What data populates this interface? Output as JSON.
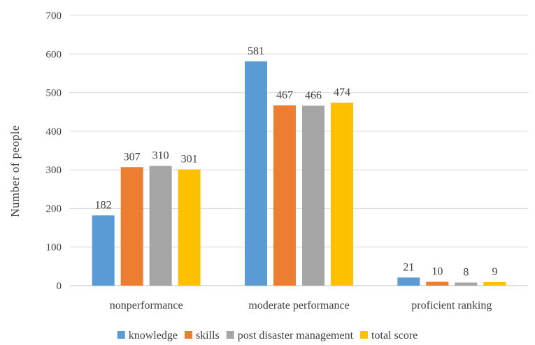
{
  "chart_data": {
    "type": "bar",
    "title": "",
    "xlabel": "",
    "ylabel": "Number of people",
    "ylim": [
      0,
      700
    ],
    "yticks": [
      "0",
      "100",
      "200",
      "300",
      "400",
      "500",
      "600",
      "700"
    ],
    "grid": true,
    "legend_position": "bottom",
    "categories": [
      "nonperformance",
      "moderate performance",
      "proficient ranking"
    ],
    "series": [
      {
        "name": "knowledge",
        "color": "#5b9bd5",
        "values": [
          182,
          581,
          21
        ]
      },
      {
        "name": "skills",
        "color": "#ed7d31",
        "values": [
          307,
          467,
          10
        ]
      },
      {
        "name": "post disaster management",
        "color": "#a5a5a5",
        "values": [
          310,
          466,
          8
        ]
      },
      {
        "name": "total score",
        "color": "#ffc000",
        "values": [
          301,
          474,
          9
        ]
      }
    ]
  }
}
